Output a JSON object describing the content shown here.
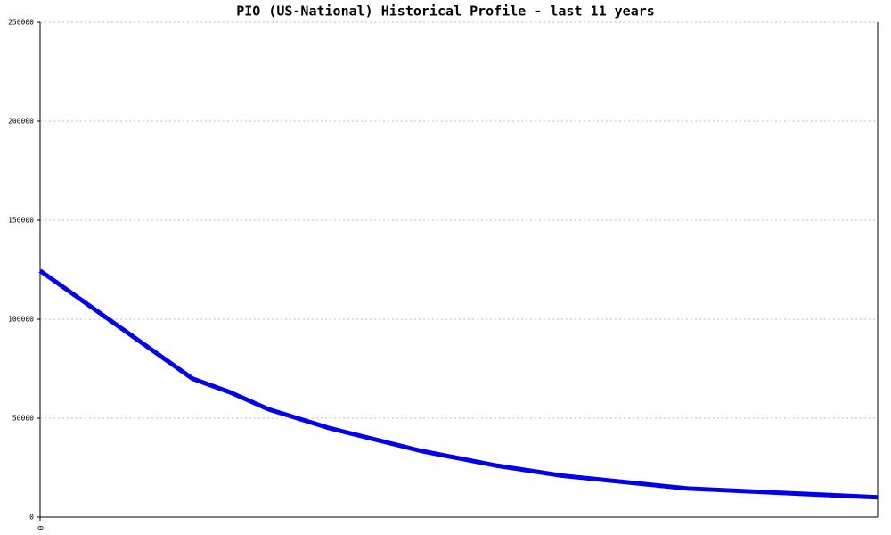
{
  "chart_data": {
    "type": "line",
    "title": "PIO (US-National) Historical Profile - last 11 years",
    "x": [
      0,
      2,
      2.5,
      3,
      3.8,
      5,
      6,
      6.85,
      8.5,
      11
    ],
    "series": [
      {
        "color": "#0000ee",
        "values": [
          124500,
          70000,
          63000,
          54500,
          45000,
          33500,
          26000,
          21000,
          14500,
          10000
        ]
      }
    ],
    "xlim": [
      0,
      11
    ],
    "xticks": [
      0
    ],
    "ylim": [
      0,
      250000
    ],
    "yticks": [
      0,
      50000,
      100000,
      150000,
      200000,
      250000
    ],
    "grid": true
  }
}
